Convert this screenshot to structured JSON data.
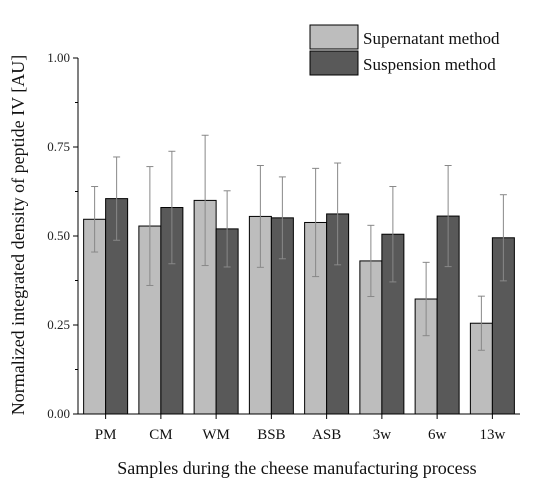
{
  "chart_data": {
    "type": "bar",
    "title": "",
    "xlabel": "Samples during the cheese manufacturing process",
    "ylabel": "Normalized integrated density of peptide IV [AU]",
    "ylim": [
      0,
      1.0
    ],
    "yticks": [
      "0.00",
      "0.25",
      "0.50",
      "0.75",
      "1.00"
    ],
    "categories": [
      "PM",
      "CM",
      "WM",
      "BSB",
      "ASB",
      "3w",
      "6w",
      "13w"
    ],
    "series": [
      {
        "name": "Supernatant method",
        "color": "#bdbdbd",
        "values": [
          0.547,
          0.528,
          0.6,
          0.555,
          0.538,
          0.43,
          0.323,
          0.255
        ],
        "errors": [
          0.092,
          0.167,
          0.183,
          0.143,
          0.152,
          0.1,
          0.103,
          0.076
        ]
      },
      {
        "name": "Suspension method",
        "color": "#595959",
        "values": [
          0.605,
          0.58,
          0.52,
          0.551,
          0.562,
          0.505,
          0.556,
          0.495
        ],
        "errors": [
          0.117,
          0.158,
          0.107,
          0.115,
          0.143,
          0.134,
          0.142,
          0.121
        ]
      }
    ],
    "grid": false,
    "legend_position": "top-right"
  }
}
